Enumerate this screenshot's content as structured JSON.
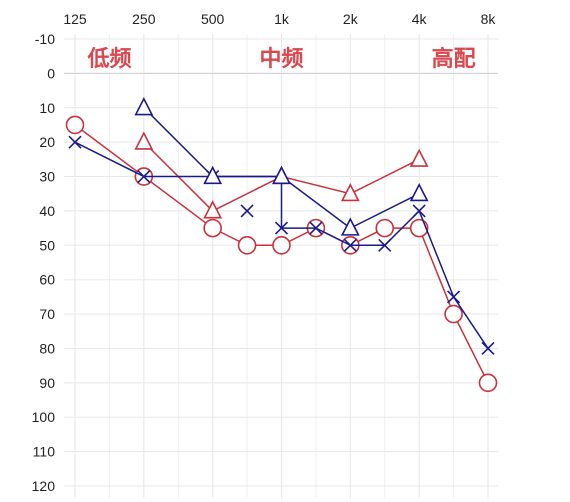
{
  "chart_data": {
    "type": "line",
    "title": "",
    "xlabel": "",
    "ylabel": "",
    "x_axis": {
      "scale": "log2",
      "position": "top",
      "tick_labels": [
        "125",
        "250",
        "500",
        "1k",
        "2k",
        "4k",
        "8k"
      ],
      "tick_values_hz": [
        125,
        250,
        500,
        1000,
        2000,
        4000,
        8000
      ]
    },
    "y_axis": {
      "inverted": true,
      "ylim": [
        -10,
        120
      ],
      "tick_values": [
        -10,
        0,
        10,
        20,
        30,
        40,
        50,
        60,
        70,
        80,
        90,
        100,
        110,
        120
      ]
    },
    "grid": true,
    "band_labels": [
      {
        "text": "低频",
        "x_hz": 177
      },
      {
        "text": "中频",
        "x_hz": 1000
      },
      {
        "text": "高配",
        "x_hz": 5660
      }
    ],
    "series": [
      {
        "marker": "circle",
        "color": "#c8323c",
        "line": "solid",
        "points": [
          [
            125,
            15
          ],
          [
            250,
            30
          ],
          [
            500,
            45
          ],
          [
            707,
            50
          ],
          [
            1000,
            50
          ],
          [
            1414,
            45
          ],
          [
            2000,
            50
          ],
          [
            2828,
            45
          ],
          [
            4000,
            45
          ],
          [
            5657,
            70
          ],
          [
            8000,
            90
          ]
        ]
      },
      {
        "marker": "triangle",
        "color": "#c8323c",
        "line": "solid",
        "segments": [
          [
            [
              250,
              20
            ],
            [
              500,
              40
            ]
          ],
          [
            [
              500,
              40
            ],
            [
              1000,
              30
            ],
            [
              2000,
              35
            ],
            [
              4000,
              25
            ]
          ]
        ]
      },
      {
        "marker": "cross",
        "color": "#1a1a8c",
        "line": "solid",
        "points": [
          [
            125,
            20
          ],
          [
            250,
            30
          ],
          [
            500,
            30
          ],
          [
            1000,
            30
          ],
          [
            1000,
            45
          ],
          [
            1414,
            45
          ],
          [
            2000,
            50
          ],
          [
            2828,
            50
          ],
          [
            4000,
            40
          ],
          [
            5657,
            65
          ],
          [
            8000,
            80
          ]
        ],
        "marker_points": [
          [
            125,
            20
          ],
          [
            250,
            30
          ],
          [
            500,
            30
          ],
          [
            707,
            40
          ],
          [
            1000,
            45
          ],
          [
            1414,
            45
          ],
          [
            2000,
            50
          ],
          [
            2828,
            50
          ],
          [
            4000,
            40
          ],
          [
            5657,
            65
          ],
          [
            8000,
            80
          ]
        ]
      },
      {
        "marker": "triangle",
        "color": "#1a1a8c",
        "line": "solid",
        "points": [
          [
            250,
            10
          ],
          [
            500,
            30
          ],
          [
            1000,
            30
          ],
          [
            2000,
            45
          ],
          [
            4000,
            35
          ]
        ]
      }
    ]
  }
}
